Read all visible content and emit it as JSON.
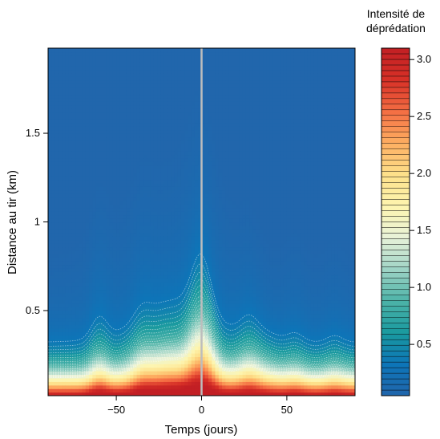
{
  "chart_data": {
    "type": "heatmap",
    "xlabel": "Temps (jours)",
    "ylabel": "Distance au tir (km)",
    "xlim": [
      -90,
      90
    ],
    "ylim": [
      0.02,
      1.98
    ],
    "x_ticks": [
      {
        "value": -50,
        "label": "−50"
      },
      {
        "value": 0,
        "label": "0"
      },
      {
        "value": 50,
        "label": "50"
      }
    ],
    "y_ticks": [
      {
        "value": 0.5,
        "label": "0.5"
      },
      {
        "value": 1,
        "label": "1"
      },
      {
        "value": 1.5,
        "label": "1.5"
      }
    ],
    "colorbar": {
      "title_lines": [
        "Intensité de",
        "déprédation"
      ],
      "range": [
        0.05,
        3.1
      ],
      "ticks": [
        {
          "value": 0.5,
          "label": "0.5"
        },
        {
          "value": 1.0,
          "label": "1.0"
        },
        {
          "value": 1.5,
          "label": "1.5"
        },
        {
          "value": 2.0,
          "label": "2.0"
        },
        {
          "value": 2.5,
          "label": "2.5"
        },
        {
          "value": 3.0,
          "label": "3.0"
        }
      ],
      "palette": [
        "#2166ac",
        "#0d75b8",
        "#1a9a9f",
        "#4db3a8",
        "#9ed3c5",
        "#e8f2d8",
        "#fdf5b0",
        "#fde08a",
        "#fdae61",
        "#f46d43",
        "#d73027",
        "#c21f24"
      ]
    },
    "vertical_line": {
      "x": 0,
      "color": "#bdbdbd"
    },
    "surface_peaks": [
      {
        "time": -60,
        "level": 0.6
      },
      {
        "time": -35,
        "level": 0.32
      },
      {
        "time": 28,
        "level": 0.32
      },
      {
        "time": 55,
        "level": 0.24
      },
      {
        "time": 78,
        "level": 0.2
      }
    ]
  }
}
